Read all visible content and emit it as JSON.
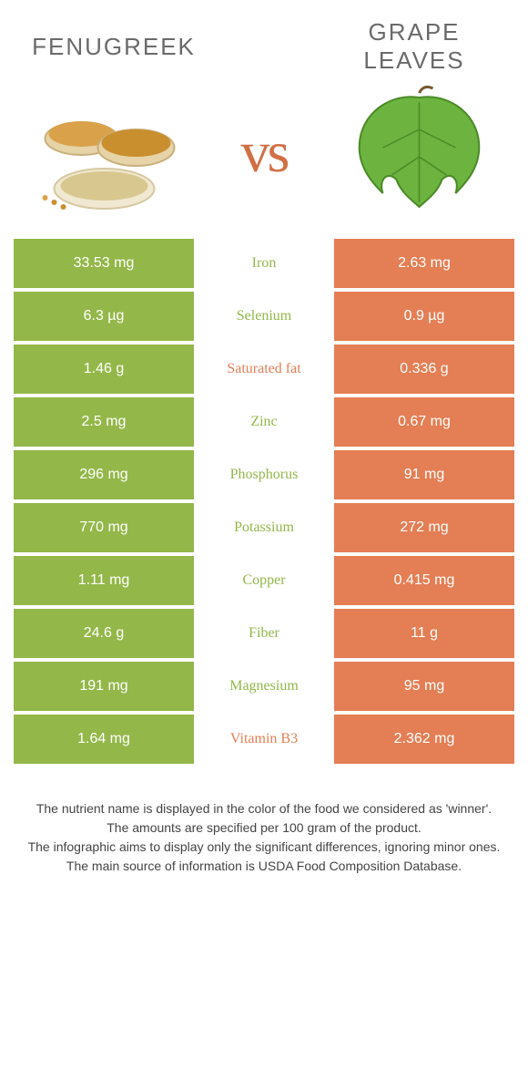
{
  "colors": {
    "left": "#93b749",
    "right": "#e47e55",
    "mid_left_text": "#93b749",
    "mid_right_text": "#e47e55",
    "header_text": "#6a6a6a",
    "vs_text": "#d16f45"
  },
  "header": {
    "left_title": "Fenugreek",
    "right_title": "Grape leaves",
    "vs": "vs"
  },
  "rows": [
    {
      "left": "33.53 mg",
      "nutrient": "Iron",
      "right": "2.63 mg",
      "winner": "left"
    },
    {
      "left": "6.3 µg",
      "nutrient": "Selenium",
      "right": "0.9 µg",
      "winner": "left"
    },
    {
      "left": "1.46 g",
      "nutrient": "Saturated fat",
      "right": "0.336 g",
      "winner": "right"
    },
    {
      "left": "2.5 mg",
      "nutrient": "Zinc",
      "right": "0.67 mg",
      "winner": "left"
    },
    {
      "left": "296 mg",
      "nutrient": "Phosphorus",
      "right": "91 mg",
      "winner": "left"
    },
    {
      "left": "770 mg",
      "nutrient": "Potassium",
      "right": "272 mg",
      "winner": "left"
    },
    {
      "left": "1.11 mg",
      "nutrient": "Copper",
      "right": "0.415 mg",
      "winner": "left"
    },
    {
      "left": "24.6 g",
      "nutrient": "Fiber",
      "right": "11 g",
      "winner": "left"
    },
    {
      "left": "191 mg",
      "nutrient": "Magnesium",
      "right": "95 mg",
      "winner": "left"
    },
    {
      "left": "1.64 mg",
      "nutrient": "Vitamin B3",
      "right": "2.362 mg",
      "winner": "right"
    }
  ],
  "footnotes": [
    "The nutrient name is displayed in the color of the food we considered as 'winner'.",
    "The amounts are specified per 100 gram of the product.",
    "The infographic aims to display only the significant differences, ignoring minor ones.",
    "The main source of information is USDA Food Composition Database."
  ]
}
